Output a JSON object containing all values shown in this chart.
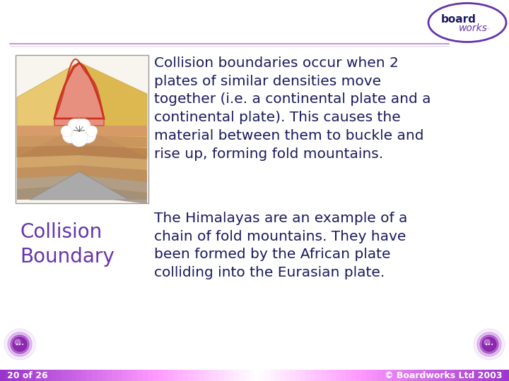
{
  "bg_color": "#ffffff",
  "header_line_color": "#9966cc",
  "text_color": "#1a1a5e",
  "slide_counter": "20 of 26",
  "copyright": "© Boardworks Ltd 2003",
  "label_text": "Collision\nBoundary",
  "label_color": "#6633aa",
  "para1": "Collision boundaries occur when 2\nplates of similar densities move\ntogether (i.e. a continental plate and a\ncontinental plate). This causes the\nmaterial between them to buckle and\nrise up, forming fold mountains.",
  "para2": "The Himalayas are an example of a\nchain of fold mountains. They have\nbeen formed by the African plate\ncolliding into the Eurasian plate.",
  "font_size_body": 14.5,
  "font_size_label": 20,
  "font_size_footer": 9,
  "footer_bar_left": "#9933bb",
  "footer_bar_mid": "#ddaaee",
  "footer_bar_right": "#9933bb",
  "logo_border_color": "#6633aa",
  "logo_text_board": "#1a1a5e",
  "logo_text_works": "#6633aa",
  "nav_button_color": "#9944bb"
}
